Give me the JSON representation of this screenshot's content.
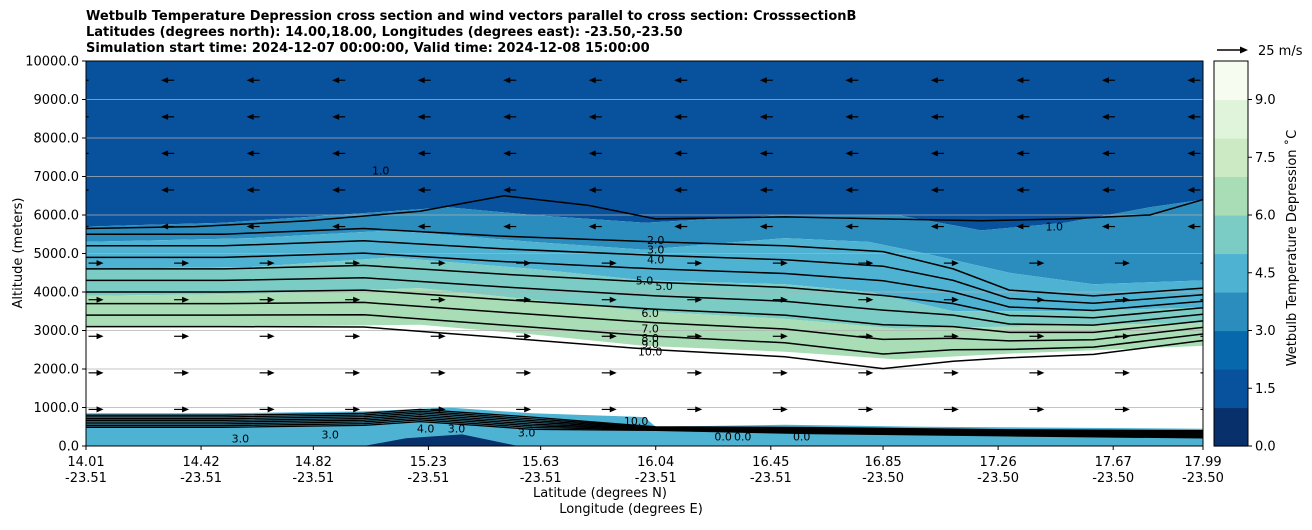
{
  "chart_data": {
    "type": "contour-cross-section",
    "title_lines": [
      "Wetbulb Temperature Depression cross section and wind vectors parallel to cross section: CrosssectionB",
      "Latitudes (degrees north): 14.00,18.00, Longitudes (degrees east): -23.50,-23.50",
      "Simulation start time: 2024-12-07 00:00:00, Valid time: 2024-12-08 15:00:00"
    ],
    "ylabel": "Altitude (meters)",
    "xlabel_lat": "Latitude (degrees N)",
    "xlabel_lon": "Longitude (degrees E)",
    "ylim": [
      0,
      10000
    ],
    "yticks": [
      "0.0",
      "1000.0",
      "2000.0",
      "3000.0",
      "4000.0",
      "5000.0",
      "6000.0",
      "7000.0",
      "8000.0",
      "9000.0",
      "10000.0"
    ],
    "xticks": [
      {
        "lat": "14.01",
        "lon": "-23.51"
      },
      {
        "lat": "14.42",
        "lon": "-23.51"
      },
      {
        "lat": "14.82",
        "lon": "-23.51"
      },
      {
        "lat": "15.23",
        "lon": "-23.51"
      },
      {
        "lat": "15.63",
        "lon": "-23.51"
      },
      {
        "lat": "16.04",
        "lon": "-23.51"
      },
      {
        "lat": "16.45",
        "lon": "-23.51"
      },
      {
        "lat": "16.85",
        "lon": "-23.50"
      },
      {
        "lat": "17.26",
        "lon": "-23.50"
      },
      {
        "lat": "17.67",
        "lon": "-23.50"
      },
      {
        "lat": "17.99",
        "lon": "-23.50"
      }
    ],
    "colorbar": {
      "label": "Wetbulb Temperature Depression ˚C",
      "min": 0.0,
      "max": 10.0,
      "ticks": [
        "0.0",
        "1.5",
        "3.0",
        "4.5",
        "6.0",
        "7.5",
        "9.0"
      ],
      "tick_values": [
        0,
        1.5,
        3,
        4.5,
        6,
        7.5,
        9
      ],
      "colors": [
        "#08306b",
        "#08519c",
        "#0868ac",
        "#2b8cbe",
        "#4eb3d3",
        "#7bccc4",
        "#a8ddb5",
        "#ccebc5",
        "#e0f3db",
        "#f7fcf0"
      ]
    },
    "wind_scale_label": "25 m/s",
    "contour_levels": [
      1.0,
      2.0,
      3.0,
      4.0,
      5.0,
      6.0,
      7.0,
      8.0,
      9.0,
      10.0
    ],
    "contour_labels": [
      {
        "text": "2.0",
        "lat": 16.04,
        "alt": 5350
      },
      {
        "text": "3.0",
        "lat": 16.04,
        "alt": 5100
      },
      {
        "text": "4.0",
        "lat": 16.04,
        "alt": 4850
      },
      {
        "text": "5.0",
        "lat": 16.0,
        "alt": 4300
      },
      {
        "text": "5.0",
        "lat": 16.07,
        "alt": 4150
      },
      {
        "text": "6.0",
        "lat": 16.02,
        "alt": 3450
      },
      {
        "text": "7.0",
        "lat": 16.02,
        "alt": 3050
      },
      {
        "text": "8.0",
        "lat": 16.02,
        "alt": 2800
      },
      {
        "text": "9.0",
        "lat": 16.02,
        "alt": 2650
      },
      {
        "text": "10.0",
        "lat": 16.02,
        "alt": 2450
      },
      {
        "text": "1.0",
        "lat": 15.06,
        "alt": 7150
      },
      {
        "text": "1.0",
        "lat": 17.46,
        "alt": 5700
      },
      {
        "text": "3.0",
        "lat": 14.56,
        "alt": 200
      },
      {
        "text": "3.0",
        "lat": 14.88,
        "alt": 300
      },
      {
        "text": "4.0",
        "lat": 15.22,
        "alt": 450
      },
      {
        "text": "3.0",
        "lat": 15.33,
        "alt": 450
      },
      {
        "text": "3.0",
        "lat": 15.58,
        "alt": 350
      },
      {
        "text": "10.0",
        "lat": 15.97,
        "alt": 650
      },
      {
        "text": "0.0",
        "lat": 16.28,
        "alt": 250
      },
      {
        "text": "0.0",
        "lat": 16.35,
        "alt": 250
      },
      {
        "text": "0.0",
        "lat": 16.56,
        "alt": 250
      }
    ],
    "wind_vectors_note": "easterly (toward increasing latitude) flow below ~5000 m, westward flow aloft"
  }
}
